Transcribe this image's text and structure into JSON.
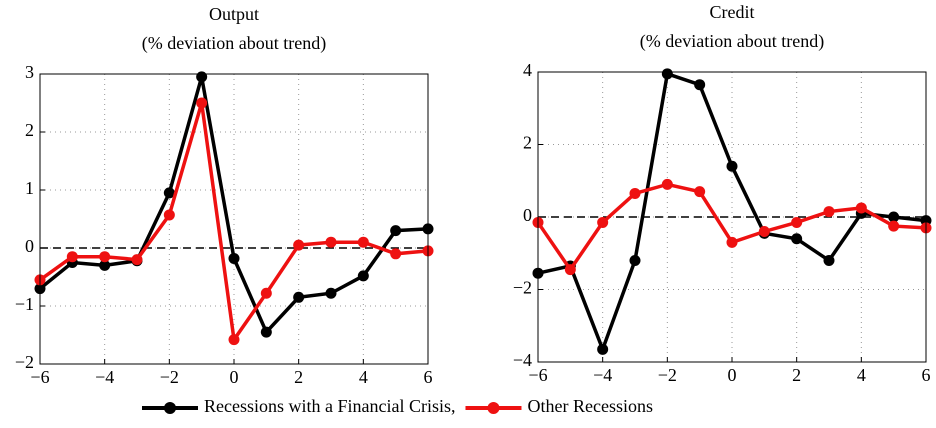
{
  "chart_data": [
    {
      "type": "line",
      "title": "Output",
      "subtitle": "(% deviation about trend)",
      "x": [
        -6,
        -5,
        -4,
        -3,
        -2,
        -1,
        0,
        1,
        2,
        3,
        4,
        5,
        6
      ],
      "series": [
        {
          "name": "Recessions with a Financial Crisis,",
          "color": "#000000",
          "values": [
            -0.7,
            -0.25,
            -0.3,
            -0.22,
            0.95,
            2.95,
            -0.18,
            -1.45,
            -0.85,
            -0.78,
            -0.48,
            0.3,
            0.33
          ]
        },
        {
          "name": "Other Recessions",
          "color": "#ee1111",
          "values": [
            -0.55,
            -0.15,
            -0.15,
            -0.2,
            0.57,
            2.5,
            -1.58,
            -0.78,
            0.05,
            0.1,
            0.1,
            -0.1,
            -0.05
          ]
        }
      ],
      "xlim": [
        -6,
        6
      ],
      "xticks": [
        {
          "value": -6,
          "label": "−6"
        },
        {
          "value": -4,
          "label": "−4"
        },
        {
          "value": -2,
          "label": "−2"
        },
        0,
        2,
        4,
        6
      ],
      "ylim": [
        -2,
        3
      ],
      "yticks": [
        {
          "value": -2,
          "label": "−2"
        },
        {
          "value": -1,
          "label": "−1"
        },
        0,
        1,
        2,
        3
      ],
      "grid": true
    },
    {
      "type": "line",
      "title": "Credit",
      "subtitle": "(% deviation about trend)",
      "x": [
        -6,
        -5,
        -4,
        -3,
        -2,
        -1,
        0,
        1,
        2,
        3,
        4,
        5,
        6
      ],
      "series": [
        {
          "color": "#000000",
          "values": [
            -1.55,
            -1.35,
            -3.65,
            -1.2,
            3.95,
            3.65,
            1.4,
            -0.45,
            -0.6,
            -1.2,
            0.1,
            0.0,
            -0.1
          ]
        },
        {
          "color": "#ee1111",
          "values": [
            -0.15,
            -1.45,
            -0.15,
            0.65,
            0.9,
            0.7,
            -0.7,
            -0.4,
            -0.15,
            0.15,
            0.25,
            -0.25,
            -0.3
          ]
        }
      ],
      "xlim": [
        -6,
        6
      ],
      "xticks": [
        {
          "value": -6,
          "label": "−6"
        },
        {
          "value": -4,
          "label": "−4"
        },
        {
          "value": -2,
          "label": "−2"
        },
        0,
        2,
        4,
        6
      ],
      "ylim": [
        -4,
        4
      ],
      "yticks": [
        {
          "value": -4,
          "label": "−4"
        },
        {
          "value": -2,
          "label": "−2"
        },
        0,
        2,
        4
      ],
      "grid": true
    }
  ]
}
